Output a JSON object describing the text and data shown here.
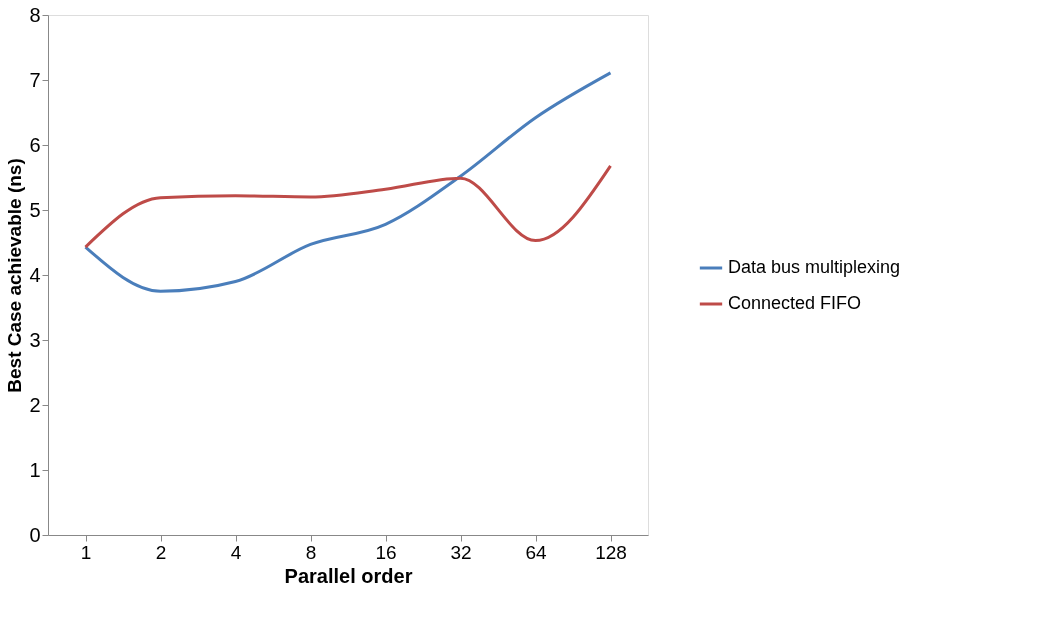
{
  "chart_data": {
    "type": "line",
    "xlabel": "Parallel order",
    "ylabel": "Best Case achievable (ns)",
    "categories": [
      "1",
      "2",
      "4",
      "8",
      "16",
      "32",
      "64",
      "128"
    ],
    "series": [
      {
        "name": "Data bus multiplexing",
        "color": "#4a7ebb",
        "values": [
          4.43,
          3.75,
          3.9,
          4.47,
          4.78,
          5.52,
          6.42,
          7.11
        ]
      },
      {
        "name": "Connected FIFO",
        "color": "#be4b48",
        "values": [
          4.43,
          5.19,
          5.22,
          5.2,
          5.32,
          5.49,
          4.53,
          5.68
        ]
      }
    ],
    "ylim": [
      0,
      8
    ],
    "yticks": [
      0,
      1,
      2,
      3,
      4,
      5,
      6,
      7,
      8
    ],
    "grid": false,
    "legend": "right",
    "marker": "none",
    "line_style": "solid"
  }
}
